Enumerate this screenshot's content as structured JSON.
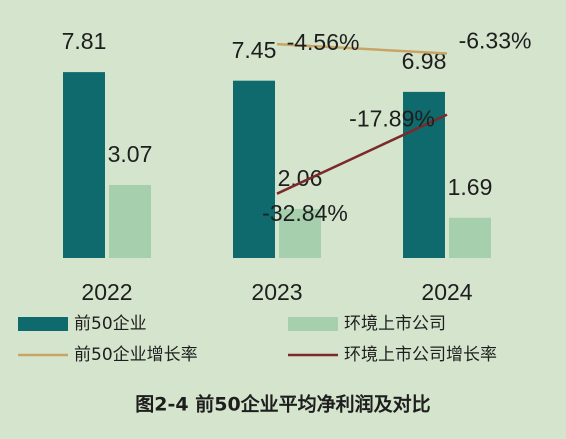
{
  "chart_data": {
    "type": "bar",
    "title": "图2-4 前50企业平均净利润及对比",
    "categories": [
      "2022",
      "2023",
      "2024"
    ],
    "ylim": [
      0,
      10
    ],
    "y2lim": [
      -45,
      0
    ],
    "series": [
      {
        "name": "前50企业",
        "type": "bar",
        "color": "#0e6a6c",
        "values": [
          7.81,
          7.45,
          6.98
        ]
      },
      {
        "name": "环境上市公司",
        "type": "bar",
        "color": "#a6cfae",
        "values": [
          3.07,
          2.06,
          1.69
        ]
      },
      {
        "name": "前50企业增长率",
        "type": "line",
        "axis": "y2",
        "color": "#c9a467",
        "values": [
          null,
          -4.56,
          -6.33
        ],
        "value_labels": [
          null,
          "-4.56%",
          "-6.33%"
        ]
      },
      {
        "name": "环境上市公司增长率",
        "type": "line",
        "axis": "y2",
        "color": "#7b2a2c",
        "values": [
          null,
          -32.84,
          -17.89
        ],
        "value_labels": [
          null,
          "-32.84%",
          "-17.89%"
        ]
      }
    ]
  }
}
